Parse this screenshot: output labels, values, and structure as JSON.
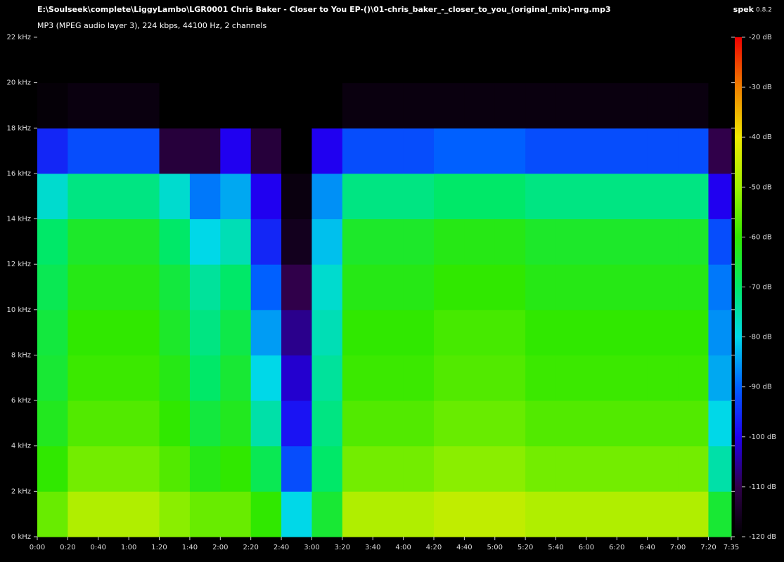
{
  "header": {
    "file": "E:\\Soulseek\\complete\\LiggyLambo\\LGR0001 Chris Baker - Closer to You EP-()\\01-chris_baker_-_closer_to_you_(original_mix)-nrg.mp3",
    "info": "MP3 (MPEG audio layer 3), 224 kbps, 44100 Hz, 2 channels",
    "app": "spek",
    "version": "0.8.2"
  },
  "chart_data": {
    "type": "spectrogram",
    "xbins": [
      0,
      20,
      40,
      60,
      80,
      100,
      120,
      140,
      160,
      180,
      200,
      220,
      240,
      260,
      280,
      300,
      320,
      340,
      360,
      380,
      400,
      420,
      440,
      455
    ],
    "ybins": [
      0,
      2,
      4,
      6,
      8,
      10,
      12,
      14,
      16,
      18,
      20,
      22
    ],
    "z": [
      [
        -55,
        -60,
        -63,
        -65,
        -66,
        -68,
        -70,
        -78,
        -96,
        -119,
        -120
      ],
      [
        -48,
        -54,
        -57,
        -59,
        -60,
        -62,
        -64,
        -72,
        -92,
        -118,
        -120
      ],
      [
        -48,
        -54,
        -57,
        -59,
        -60,
        -62,
        -64,
        -72,
        -92,
        -118,
        -120
      ],
      [
        -48,
        -54,
        -57,
        -59,
        -60,
        -62,
        -64,
        -72,
        -92,
        -118,
        -120
      ],
      [
        -52,
        -57,
        -60,
        -62,
        -64,
        -66,
        -70,
        -78,
        -112,
        -120,
        -120
      ],
      [
        -55,
        -62,
        -66,
        -70,
        -72,
        -74,
        -80,
        -88,
        -112,
        -120,
        -120
      ],
      [
        -55,
        -60,
        -63,
        -65,
        -67,
        -70,
        -76,
        -84,
        -100,
        -120,
        -120
      ],
      [
        -60,
        -68,
        -75,
        -80,
        -85,
        -90,
        -96,
        -100,
        -112,
        -120,
        -120
      ],
      [
        -80,
        -92,
        -98,
        -102,
        -106,
        -110,
        -116,
        -118,
        -120,
        -120,
        -120
      ],
      [
        -65,
        -70,
        -72,
        -74,
        -76,
        -78,
        -82,
        -86,
        -100,
        -120,
        -120
      ],
      [
        -48,
        -54,
        -57,
        -59,
        -60,
        -62,
        -64,
        -72,
        -92,
        -118,
        -120
      ],
      [
        -48,
        -54,
        -57,
        -59,
        -60,
        -62,
        -64,
        -72,
        -92,
        -118,
        -120
      ],
      [
        -48,
        -54,
        -57,
        -59,
        -60,
        -62,
        -64,
        -72,
        -92,
        -118,
        -120
      ],
      [
        -46,
        -52,
        -55,
        -57,
        -58,
        -60,
        -62,
        -70,
        -90,
        -118,
        -120
      ],
      [
        -46,
        -52,
        -55,
        -57,
        -58,
        -60,
        -62,
        -70,
        -90,
        -118,
        -120
      ],
      [
        -46,
        -52,
        -55,
        -57,
        -58,
        -60,
        -62,
        -70,
        -90,
        -118,
        -120
      ],
      [
        -48,
        -54,
        -57,
        -59,
        -60,
        -62,
        -64,
        -72,
        -92,
        -118,
        -120
      ],
      [
        -48,
        -54,
        -57,
        -59,
        -60,
        -62,
        -64,
        -72,
        -92,
        -118,
        -120
      ],
      [
        -48,
        -54,
        -57,
        -59,
        -60,
        -62,
        -64,
        -72,
        -92,
        -118,
        -120
      ],
      [
        -48,
        -54,
        -57,
        -59,
        -60,
        -62,
        -64,
        -72,
        -92,
        -118,
        -120
      ],
      [
        -48,
        -54,
        -57,
        -59,
        -60,
        -62,
        -64,
        -72,
        -92,
        -118,
        -120
      ],
      [
        -48,
        -54,
        -57,
        -59,
        -60,
        -62,
        -64,
        -72,
        -92,
        -118,
        -120
      ],
      [
        -65,
        -75,
        -80,
        -84,
        -86,
        -88,
        -92,
        -100,
        -110,
        -120,
        -120
      ]
    ],
    "xlim": [
      0,
      455
    ],
    "ylim": [
      0,
      22
    ],
    "zlim": [
      -120,
      -20
    ],
    "xticks": [
      {
        "value": 0,
        "label": "0:00"
      },
      {
        "value": 20,
        "label": "0:20"
      },
      {
        "value": 40,
        "label": "0:40"
      },
      {
        "value": 60,
        "label": "1:00"
      },
      {
        "value": 80,
        "label": "1:20"
      },
      {
        "value": 100,
        "label": "1:40"
      },
      {
        "value": 120,
        "label": "2:00"
      },
      {
        "value": 140,
        "label": "2:20"
      },
      {
        "value": 160,
        "label": "2:40"
      },
      {
        "value": 180,
        "label": "3:00"
      },
      {
        "value": 200,
        "label": "3:20"
      },
      {
        "value": 220,
        "label": "3:40"
      },
      {
        "value": 240,
        "label": "4:00"
      },
      {
        "value": 260,
        "label": "4:20"
      },
      {
        "value": 280,
        "label": "4:40"
      },
      {
        "value": 300,
        "label": "5:00"
      },
      {
        "value": 320,
        "label": "5:20"
      },
      {
        "value": 340,
        "label": "5:40"
      },
      {
        "value": 360,
        "label": "6:00"
      },
      {
        "value": 380,
        "label": "6:20"
      },
      {
        "value": 400,
        "label": "6:40"
      },
      {
        "value": 420,
        "label": "7:00"
      },
      {
        "value": 440,
        "label": "7:20"
      },
      {
        "value": 455,
        "label": "7:35"
      }
    ],
    "yticks": [
      {
        "value": 0,
        "label": "0 kHz"
      },
      {
        "value": 2,
        "label": "2 kHz"
      },
      {
        "value": 4,
        "label": "4 kHz"
      },
      {
        "value": 6,
        "label": "6 kHz"
      },
      {
        "value": 8,
        "label": "8 kHz"
      },
      {
        "value": 10,
        "label": "10 kHz"
      },
      {
        "value": 12,
        "label": "12 kHz"
      },
      {
        "value": 14,
        "label": "14 kHz"
      },
      {
        "value": 16,
        "label": "16 kHz"
      },
      {
        "value": 18,
        "label": "18 kHz"
      },
      {
        "value": 20,
        "label": "20 kHz"
      },
      {
        "value": 22,
        "label": "22 kHz"
      }
    ],
    "zticks": [
      {
        "value": -20,
        "label": "-20 dB"
      },
      {
        "value": -30,
        "label": "-30 dB"
      },
      {
        "value": -40,
        "label": "-40 dB"
      },
      {
        "value": -50,
        "label": "-50 dB"
      },
      {
        "value": -60,
        "label": "-60 dB"
      },
      {
        "value": -70,
        "label": "-70 dB"
      },
      {
        "value": -80,
        "label": "-80 dB"
      },
      {
        "value": -90,
        "label": "-90 dB"
      },
      {
        "value": -100,
        "label": "-100 dB"
      },
      {
        "value": -110,
        "label": "-110 dB"
      },
      {
        "value": -120,
        "label": "-120 dB"
      }
    ],
    "colorscale": [
      "#000000",
      "#30004a",
      "#2000f0",
      "#0060ff",
      "#00d8e8",
      "#00e868",
      "#30e800",
      "#a0f000",
      "#f0e800",
      "#f08000",
      "#f00000"
    ]
  }
}
